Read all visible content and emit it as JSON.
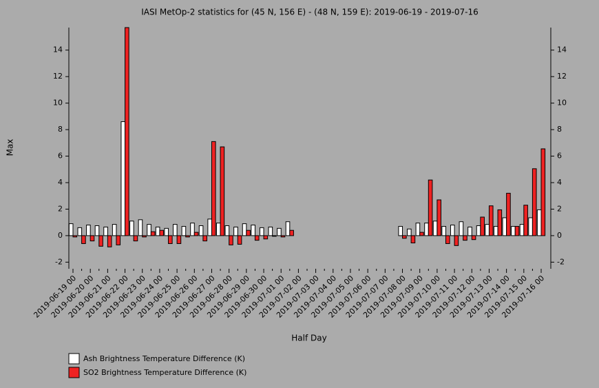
{
  "chart_data": {
    "type": "bar",
    "title": "IASI MetOp-2 statistics for (45 N, 156 E) - (48 N, 159 E): 2019-06-19 - 2019-07-16",
    "x_label": "Half Day",
    "y_label": "Max",
    "categories": [
      "2019-06-19 00",
      null,
      "2019-06-20 00",
      null,
      "2019-06-21 00",
      null,
      "2019-06-22 00",
      null,
      "2019-06-23 00",
      null,
      "2019-06-24 00",
      null,
      "2019-06-25 00",
      null,
      "2019-06-26 00",
      null,
      "2019-06-27 00",
      null,
      "2019-06-28 00",
      null,
      "2019-06-29 00",
      null,
      "2019-06-30 00",
      null,
      "2019-07-01 00",
      null,
      "2019-07-02 00",
      null,
      "2019-07-03 00",
      null,
      "2019-07-04 00",
      null,
      "2019-07-05 00",
      null,
      "2019-07-06 00",
      null,
      "2019-07-07 00",
      null,
      "2019-07-08 00",
      null,
      "2019-07-09 00",
      null,
      "2019-07-10 00",
      null,
      "2019-07-11 00",
      null,
      "2019-07-12 00",
      null,
      "2019-07-13 00",
      null,
      "2019-07-14 00",
      null,
      "2019-07-15 00",
      null,
      "2019-07-16 00"
    ],
    "series": [
      {
        "name": "Ash Brightness Temperature Difference (K)",
        "color": "#ffffff",
        "values": [
          0.9,
          0.6,
          0.8,
          0.75,
          0.65,
          0.85,
          8.6,
          1.1,
          1.2,
          0.85,
          0.65,
          0.55,
          0.85,
          0.7,
          0.95,
          0.75,
          1.25,
          0.95,
          0.75,
          0.65,
          0.9,
          0.8,
          0.6,
          0.65,
          0.55,
          1.05,
          null,
          null,
          null,
          null,
          null,
          null,
          null,
          null,
          null,
          null,
          null,
          null,
          0.7,
          0.5,
          0.95,
          0.95,
          1.1,
          0.7,
          0.8,
          1.05,
          0.65,
          0.75,
          0.85,
          0.7,
          1.35,
          0.7,
          0.85,
          1.35,
          1.95
        ]
      },
      {
        "name": "SO2 Brightness Temperature Difference (K)",
        "color": "#ee2222",
        "values": [
          -0.1,
          -0.6,
          -0.4,
          -0.8,
          -0.85,
          -0.7,
          15.7,
          -0.4,
          -0.1,
          0.3,
          0.4,
          -0.6,
          -0.6,
          -0.1,
          0.25,
          -0.4,
          7.1,
          6.7,
          -0.7,
          -0.65,
          0.4,
          -0.35,
          -0.25,
          -0.05,
          -0.1,
          0.4,
          null,
          null,
          null,
          null,
          null,
          null,
          null,
          null,
          null,
          null,
          null,
          null,
          -0.2,
          -0.55,
          0.25,
          4.2,
          2.7,
          -0.6,
          -0.75,
          -0.35,
          -0.3,
          1.4,
          2.25,
          1.95,
          3.2,
          0.7,
          2.3,
          5.05,
          6.55
        ]
      }
    ],
    "ylim": [
      -2.5,
      15.7
    ],
    "yticks": [
      -2,
      0,
      2,
      4,
      6,
      8,
      10,
      12,
      14
    ],
    "grid": false
  }
}
